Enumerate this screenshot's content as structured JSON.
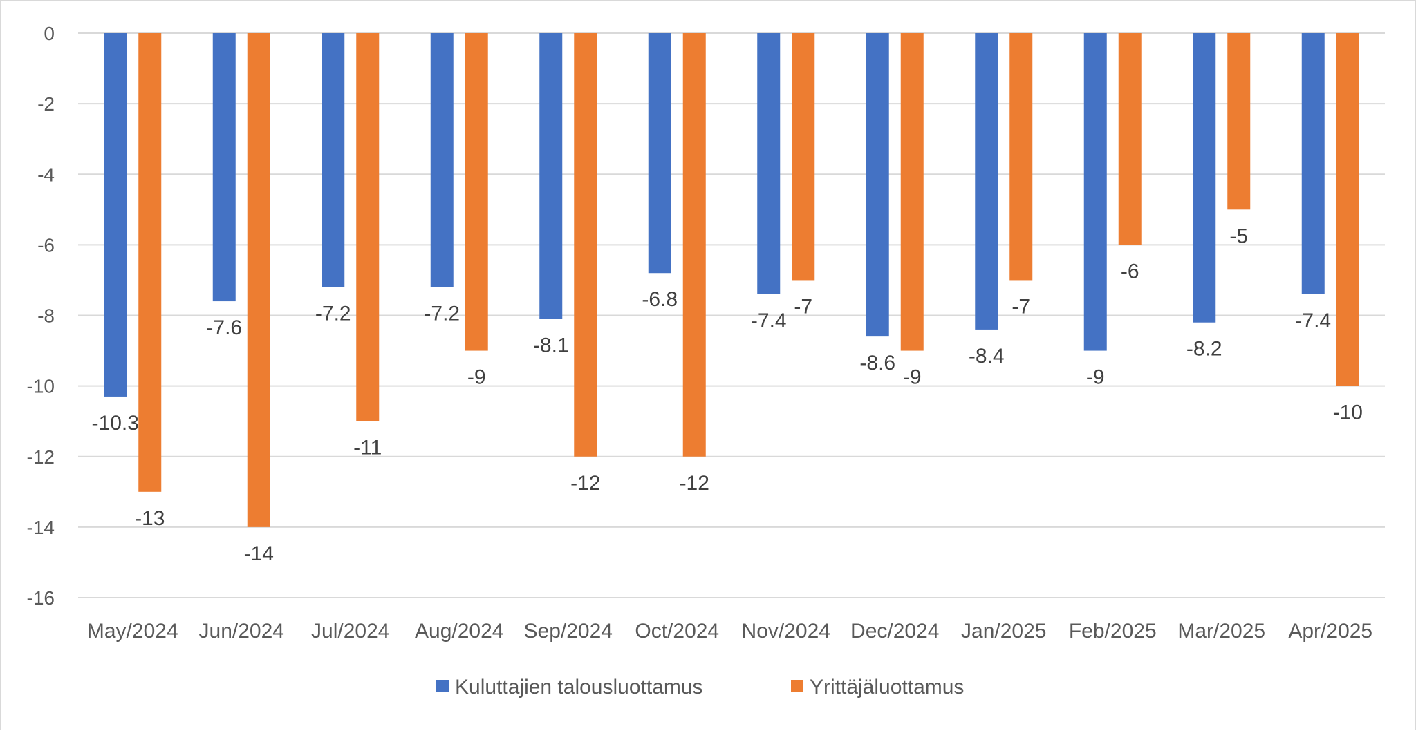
{
  "chart_data": {
    "type": "bar",
    "title": "",
    "xlabel": "",
    "ylabel": "",
    "ylim": [
      -16,
      0
    ],
    "ytick_step": 2,
    "grid": true,
    "legend_position": "bottom",
    "categories": [
      "May/2024",
      "Jun/2024",
      "Jul/2024",
      "Aug/2024",
      "Sep/2024",
      "Oct/2024",
      "Nov/2024",
      "Dec/2024",
      "Jan/2025",
      "Feb/2025",
      "Mar/2025",
      "Apr/2025"
    ],
    "series": [
      {
        "name": "Kuluttajien talousluottamus",
        "color": "#4472c4",
        "values": [
          -10.3,
          -7.6,
          -7.2,
          -7.2,
          -8.1,
          -6.8,
          -7.4,
          -8.6,
          -8.4,
          -9,
          -8.2,
          -7.4
        ]
      },
      {
        "name": "Yrittäjäluottamus",
        "color": "#ed7d31",
        "values": [
          -13,
          -14,
          -11,
          -9,
          -12,
          -12,
          -7,
          -9,
          -7,
          -6,
          -5,
          -10
        ]
      }
    ]
  }
}
